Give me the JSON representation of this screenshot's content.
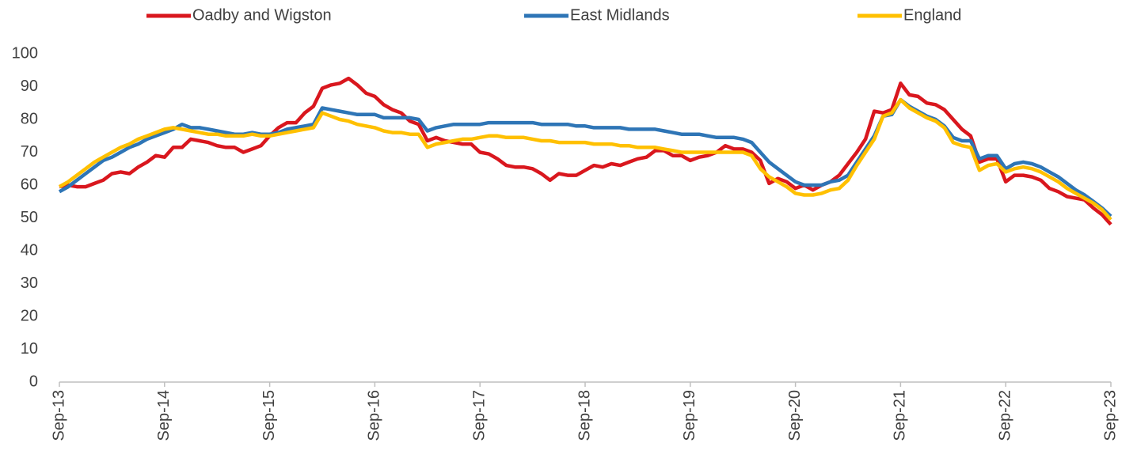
{
  "chart_data": {
    "type": "line",
    "categories": [
      "Sep-13",
      null,
      null,
      null,
      null,
      null,
      null,
      null,
      null,
      null,
      null,
      null,
      "Sep-14",
      null,
      null,
      null,
      null,
      null,
      null,
      null,
      null,
      null,
      null,
      null,
      "Sep-15",
      null,
      null,
      null,
      null,
      null,
      null,
      null,
      null,
      null,
      null,
      null,
      "Sep-16",
      null,
      null,
      null,
      null,
      null,
      null,
      null,
      null,
      null,
      null,
      null,
      "Sep-17",
      null,
      null,
      null,
      null,
      null,
      null,
      null,
      null,
      null,
      null,
      null,
      "Sep-18",
      null,
      null,
      null,
      null,
      null,
      null,
      null,
      null,
      null,
      null,
      null,
      "Sep-19",
      null,
      null,
      null,
      null,
      null,
      null,
      null,
      null,
      null,
      null,
      null,
      "Sep-20",
      null,
      null,
      null,
      null,
      null,
      null,
      null,
      null,
      null,
      null,
      null,
      "Sep-21",
      null,
      null,
      null,
      null,
      null,
      null,
      null,
      null,
      null,
      null,
      null,
      "Sep-22",
      null,
      null,
      null,
      null,
      null,
      null,
      null,
      null,
      null,
      null,
      null,
      "Sep-23"
    ],
    "series": [
      {
        "name": "Oadby and Wigston",
        "color": "#d9171e",
        "values": [
          59.5,
          60,
          59.5,
          59.5,
          60.5,
          61.5,
          63.5,
          64,
          63.5,
          65.5,
          67,
          69,
          68.5,
          71.5,
          71.5,
          74,
          73.5,
          73,
          72,
          71.5,
          71.5,
          70,
          71,
          72,
          75,
          77.5,
          79,
          79,
          82,
          84,
          89.5,
          90.5,
          91,
          92.5,
          90.5,
          88,
          87,
          84.5,
          83,
          82,
          79.5,
          78.5,
          73.5,
          74.5,
          73.5,
          73,
          72.5,
          72.5,
          70,
          69.5,
          68,
          66,
          65.5,
          65.5,
          65,
          63.5,
          61.5,
          63.5,
          63,
          63,
          64.5,
          66,
          65.5,
          66.5,
          66,
          67,
          68,
          68.5,
          70.5,
          70.5,
          69,
          69,
          67.5,
          68.5,
          69,
          70,
          72,
          71,
          71,
          70,
          67.5,
          60.5,
          62,
          61,
          59,
          60,
          58.5,
          60,
          61,
          63,
          66.5,
          70,
          74,
          82.5,
          82,
          83,
          91,
          87.5,
          87,
          85,
          84.5,
          83,
          80,
          77,
          75,
          67,
          68,
          68,
          61,
          63,
          63,
          62.5,
          61.5,
          59,
          58,
          56.5,
          56,
          55.5,
          53,
          51,
          48
        ]
      },
      {
        "name": "East Midlands",
        "color": "#2e75b6",
        "values": [
          58,
          59.5,
          61.5,
          63.5,
          65.5,
          67.5,
          68.5,
          70,
          71.5,
          72.5,
          74,
          75,
          76,
          77,
          78.5,
          77.5,
          77.5,
          77,
          76.5,
          76,
          75.5,
          75.5,
          76,
          75.5,
          75.5,
          76,
          77,
          77.5,
          78,
          78.5,
          83.5,
          83,
          82.5,
          82,
          81.5,
          81.5,
          81.5,
          80.5,
          80.5,
          80.5,
          80.5,
          80,
          76.5,
          77.5,
          78,
          78.5,
          78.5,
          78.5,
          78.5,
          79,
          79,
          79,
          79,
          79,
          79,
          78.5,
          78.5,
          78.5,
          78.5,
          78,
          78,
          77.5,
          77.5,
          77.5,
          77.5,
          77,
          77,
          77,
          77,
          76.5,
          76,
          75.5,
          75.5,
          75.5,
          75,
          74.5,
          74.5,
          74.5,
          74,
          73,
          70,
          67,
          65,
          63,
          61,
          60,
          60,
          60,
          61,
          61.5,
          63,
          67,
          71,
          75,
          81,
          81.5,
          86,
          84,
          82.5,
          81,
          80,
          78,
          74.5,
          73.5,
          73.5,
          68,
          69,
          69,
          65,
          66.5,
          67,
          66.5,
          65.5,
          64,
          62.5,
          60.5,
          58.5,
          57,
          55,
          53,
          50.5
        ]
      },
      {
        "name": "England",
        "color": "#ffc000",
        "values": [
          59.5,
          61,
          63,
          65,
          67,
          68.5,
          70,
          71.5,
          72.5,
          74,
          75,
          76,
          77,
          77.5,
          77,
          76.5,
          76,
          75.5,
          75.5,
          75,
          75,
          75,
          75.5,
          75,
          75,
          75.5,
          76,
          76.5,
          77,
          77.5,
          82,
          81,
          80,
          79.5,
          78.5,
          78,
          77.5,
          76.5,
          76,
          76,
          75.5,
          75.5,
          71.5,
          72.5,
          73,
          73.5,
          74,
          74,
          74.5,
          75,
          75,
          74.5,
          74.5,
          74.5,
          74,
          73.5,
          73.5,
          73,
          73,
          73,
          73,
          72.5,
          72.5,
          72.5,
          72,
          72,
          71.5,
          71.5,
          71.5,
          71,
          70.5,
          70,
          70,
          70,
          70,
          70,
          70,
          70,
          70,
          69,
          65,
          62.5,
          61,
          59.5,
          57.5,
          57,
          57,
          57.5,
          58.5,
          59,
          61.5,
          66,
          70,
          74,
          81,
          82,
          86,
          83.5,
          82,
          80.5,
          79.5,
          77.5,
          73,
          72,
          71.5,
          64.5,
          66,
          66.5,
          64,
          65,
          65.5,
          65,
          64,
          62.5,
          61,
          59,
          57.5,
          56,
          54.5,
          52.5,
          49.5
        ]
      }
    ],
    "ylim": [
      0,
      100
    ],
    "yticks": [
      0,
      10,
      20,
      30,
      40,
      50,
      60,
      70,
      80,
      90,
      100
    ],
    "grid": false,
    "legend": "top"
  }
}
